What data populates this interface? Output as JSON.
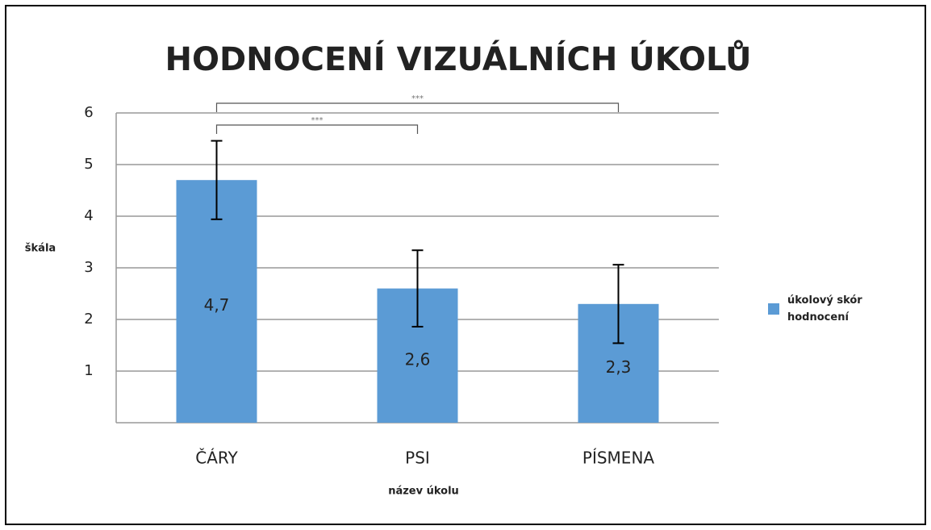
{
  "chart_data": {
    "type": "bar",
    "title": "HODNOCENÍ VIZUÁLNÍCH ÚKOLŮ",
    "x_label": "název úkolu",
    "y_label": "škála",
    "categories": [
      "ČÁRY",
      "PSI",
      "PÍSMENA"
    ],
    "series": [
      {
        "name": "úkolový skór hodnocení",
        "color": "#5b9bd5",
        "values": [
          4.7,
          2.6,
          2.3
        ],
        "value_labels": [
          "4,7",
          "2,6",
          "2,3"
        ],
        "errors": [
          0.76,
          0.74,
          0.76
        ]
      }
    ],
    "significance": [
      {
        "label": "***",
        "between": [
          "ČÁRY",
          "PÍSMENA"
        ]
      },
      {
        "label": "***",
        "between": [
          "ČÁRY",
          "PSI"
        ]
      }
    ],
    "ylim": [
      0,
      6
    ],
    "yticks": [
      1,
      2,
      3,
      4,
      5,
      6
    ],
    "grid": true,
    "legend": "right"
  }
}
